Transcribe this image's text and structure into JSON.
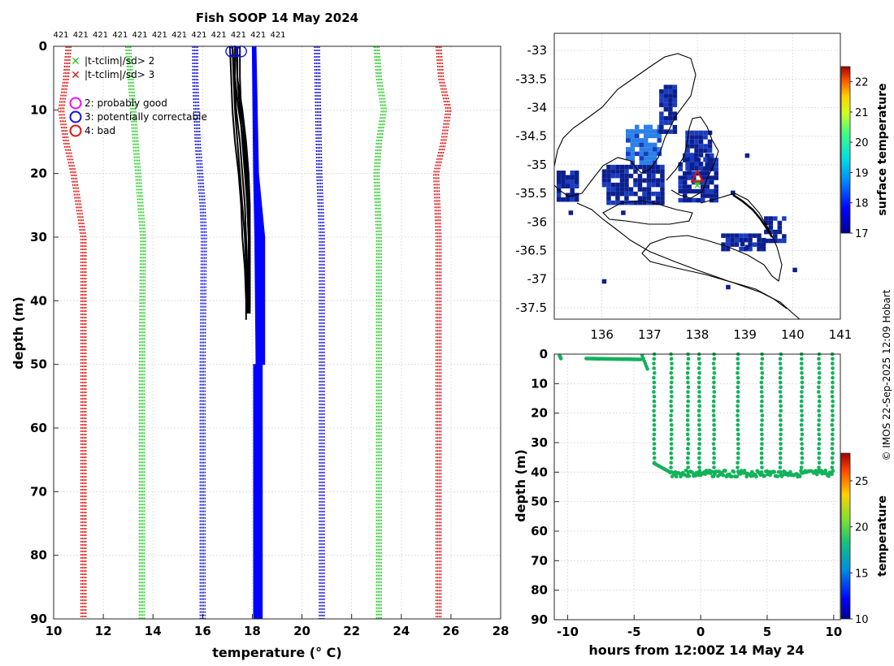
{
  "chart_data": [
    {
      "id": "profile",
      "type": "line",
      "title": "Fish SOOP 14 May 2024",
      "xlabel": "temperature (° C)",
      "ylabel": "depth (m)",
      "xlim": [
        10,
        28
      ],
      "ylim": [
        0,
        90
      ],
      "xticks": [
        10,
        12,
        14,
        16,
        18,
        20,
        22,
        24,
        26,
        28
      ],
      "yticks": [
        0,
        10,
        20,
        30,
        40,
        50,
        60,
        70,
        80,
        90
      ],
      "grid": true,
      "top_labels": [
        "421",
        "421",
        "421",
        "421",
        "421",
        "421",
        "421",
        "421",
        "421",
        "421",
        "421",
        "421"
      ],
      "legend_location": "top-left",
      "legend": [
        {
          "marker": "x",
          "color": "#22cc22",
          "label": "|t-tclim|/sd> 2"
        },
        {
          "marker": "x",
          "color": "#dd1111",
          "label": "|t-tclim|/sd> 3"
        },
        {
          "marker": "o",
          "color": "#ee11ee",
          "label": "2: probably good"
        },
        {
          "marker": "o",
          "color": "#1111dd",
          "label": "3: potentially correctable"
        },
        {
          "marker": "o",
          "color": "#dd1111",
          "label": "4: bad"
        }
      ],
      "climatology_series": [
        {
          "name": "clim -3sd",
          "color": "#dd1111",
          "depth": [
            0,
            5,
            10,
            15,
            20,
            25,
            30,
            50,
            90
          ],
          "temp": [
            10.6,
            10.5,
            10.3,
            10.5,
            10.8,
            11.0,
            11.2,
            11.2,
            11.2
          ]
        },
        {
          "name": "clim -2sd",
          "color": "#22cc22",
          "depth": [
            0,
            5,
            10,
            15,
            20,
            25,
            30,
            50,
            90
          ],
          "temp": [
            13.0,
            13.1,
            13.2,
            13.3,
            13.4,
            13.5,
            13.6,
            13.55,
            13.55
          ]
        },
        {
          "name": "clim mean",
          "color": "#1111dd",
          "depth": [
            0,
            5,
            10,
            15,
            20,
            25,
            30,
            50,
            90
          ],
          "temp": [
            15.7,
            15.7,
            15.75,
            15.8,
            15.9,
            16.0,
            16.05,
            16.0,
            16.0
          ]
        },
        {
          "name": "clim +1sd",
          "color": "#1111dd",
          "depth": [
            0,
            10,
            20,
            30,
            50,
            90
          ],
          "temp": [
            20.6,
            20.65,
            20.7,
            20.8,
            20.8,
            20.8
          ]
        },
        {
          "name": "clim +2sd",
          "color": "#22cc22",
          "depth": [
            0,
            5,
            10,
            15,
            20,
            30,
            50,
            90
          ],
          "temp": [
            23.0,
            23.1,
            23.3,
            23.1,
            23.0,
            23.1,
            23.1,
            23.1
          ]
        },
        {
          "name": "clim +3sd",
          "color": "#dd1111",
          "depth": [
            0,
            5,
            10,
            15,
            20,
            30,
            50,
            90
          ],
          "temp": [
            25.5,
            25.6,
            25.9,
            25.7,
            25.4,
            25.5,
            25.5,
            25.5
          ]
        }
      ],
      "obs_profiles": [
        {
          "depth": [
            0,
            5,
            10,
            15,
            20,
            25,
            30,
            35,
            40,
            42
          ],
          "temp": [
            17.2,
            17.25,
            17.3,
            17.4,
            17.5,
            17.6,
            17.7,
            17.75,
            17.8,
            17.8
          ]
        },
        {
          "depth": [
            0,
            5,
            10,
            15,
            20,
            25,
            30,
            35,
            40,
            42
          ],
          "temp": [
            17.3,
            17.3,
            17.35,
            17.5,
            17.6,
            17.7,
            17.75,
            17.8,
            17.8,
            17.85
          ]
        },
        {
          "depth": [
            0,
            5,
            10,
            15,
            20,
            25,
            30,
            35,
            40,
            43
          ],
          "temp": [
            17.1,
            17.15,
            17.2,
            17.3,
            17.45,
            17.55,
            17.6,
            17.7,
            17.75,
            17.75
          ]
        },
        {
          "depth": [
            0,
            5,
            10,
            15,
            20,
            25,
            30,
            35,
            40,
            41
          ],
          "temp": [
            17.4,
            17.4,
            17.5,
            17.6,
            17.7,
            17.8,
            17.85,
            17.85,
            17.85,
            17.85
          ]
        },
        {
          "depth": [
            0,
            5,
            10,
            15,
            20,
            25,
            30,
            35,
            40,
            42
          ],
          "temp": [
            17.5,
            17.5,
            17.55,
            17.7,
            17.8,
            17.85,
            17.9,
            17.9,
            17.9,
            17.9
          ]
        },
        {
          "depth": [
            0,
            5,
            10,
            15,
            20,
            25,
            30,
            35,
            40,
            42
          ],
          "temp": [
            17.2,
            17.3,
            17.45,
            17.65,
            17.75,
            17.8,
            17.85,
            17.85,
            17.85,
            17.85
          ]
        },
        {
          "depth": [
            0,
            5,
            10,
            15,
            20,
            25,
            30,
            35,
            40,
            41
          ],
          "temp": [
            17.35,
            17.4,
            17.6,
            17.75,
            17.85,
            17.9,
            17.9,
            17.9,
            17.9,
            17.9
          ]
        }
      ],
      "flagged_surface_points": [
        {
          "depth": 0.8,
          "temp": 17.15,
          "flag": 3
        },
        {
          "depth": 0.8,
          "temp": 17.3,
          "flag": 3
        },
        {
          "depth": 0.8,
          "temp": 17.55,
          "flag": 3
        }
      ],
      "fill_band": {
        "color": "#0000ff",
        "depth": [
          0,
          20,
          30,
          50,
          50,
          90
        ],
        "left": [
          18.0,
          18.05,
          18.1,
          18.15,
          18.05,
          18.05
        ],
        "right": [
          18.15,
          18.25,
          18.5,
          18.5,
          18.4,
          18.4
        ]
      }
    },
    {
      "id": "map",
      "type": "heatmap",
      "xlim": [
        135,
        141
      ],
      "ylim": [
        -37.7,
        -32.7
      ],
      "xticks": [
        136,
        137,
        138,
        139,
        140,
        141
      ],
      "yticks": [
        -33,
        -33.5,
        -34,
        -34.5,
        -35,
        -35.5,
        -36,
        -36.5,
        -37,
        -37.5
      ],
      "colorbar": {
        "label": "surface temperature",
        "min": 17,
        "max": 22.5,
        "ticks": [
          17,
          18,
          19,
          20,
          21,
          22
        ]
      },
      "marker_location": {
        "lon": 138.0,
        "lat": -35.25
      },
      "sst_patches": [
        {
          "lon": [
            135.05,
            135.5
          ],
          "lat": [
            -35.1,
            -35.6
          ],
          "value": 17.2
        },
        {
          "lon": [
            136.0,
            137.3
          ],
          "lat": [
            -35.0,
            -35.7
          ],
          "value": 17.1
        },
        {
          "lon": [
            136.5,
            137.2
          ],
          "lat": [
            -34.3,
            -35.0
          ],
          "value": 18.0
        },
        {
          "lon": [
            137.2,
            137.5
          ],
          "lat": [
            -33.6,
            -34.4
          ],
          "value": 17.2
        },
        {
          "lon": [
            137.6,
            138.4
          ],
          "lat": [
            -34.8,
            -35.6
          ],
          "value": 17.1
        },
        {
          "lon": [
            137.75,
            138.25
          ],
          "lat": [
            -34.4,
            -35.1
          ],
          "value": 17.2
        },
        {
          "lon": [
            139.4,
            139.8
          ],
          "lat": [
            -35.9,
            -36.3
          ],
          "value": 17.0
        },
        {
          "lon": [
            138.5,
            139.4
          ],
          "lat": [
            -36.2,
            -36.5
          ],
          "value": 17.0
        }
      ]
    },
    {
      "id": "track",
      "type": "scatter",
      "xlabel": "hours from 12:00Z 14 May 24",
      "ylabel": "depth (m)",
      "xlim": [
        -11,
        10.5
      ],
      "ylim": [
        0,
        90
      ],
      "xticks": [
        -10,
        -5,
        0,
        5,
        10
      ],
      "yticks": [
        0,
        10,
        20,
        30,
        40,
        50,
        60,
        70,
        80,
        90
      ],
      "colorbar": {
        "label": "temperature",
        "min": 10,
        "max": 28,
        "ticks": [
          10,
          15,
          20,
          25
        ]
      },
      "point_value": 17.8,
      "surface_segments": [
        {
          "t": [
            -10.6,
            -10.5
          ],
          "depth": [
            0.5,
            1.5
          ]
        },
        {
          "t": [
            -8.6,
            -4.5
          ],
          "depth": [
            1.5,
            1.8
          ]
        },
        {
          "t": [
            -4.4,
            -4.0
          ],
          "depth": [
            0.5,
            5.0
          ]
        }
      ],
      "shallow_to_floor": {
        "t": [
          -3.5,
          -2.3
        ],
        "depth": [
          37,
          40
        ]
      },
      "floor": {
        "t": [
          -2.3,
          10.0
        ],
        "depth_base": 40.5
      },
      "dive_times": [
        -3.5,
        -2.2,
        -0.95,
        -0.1,
        1.0,
        2.8,
        4.6,
        6.0,
        7.6,
        8.9,
        9.9
      ]
    }
  ],
  "watermark": "© IMOS 22-Sep-2025 12:09 Hobart",
  "colors": {
    "axis": "#262626",
    "grid": "#d9d9d9",
    "red": "#dd1111",
    "green": "#22cc22",
    "blue": "#1111dd",
    "track": "#12b25a"
  }
}
